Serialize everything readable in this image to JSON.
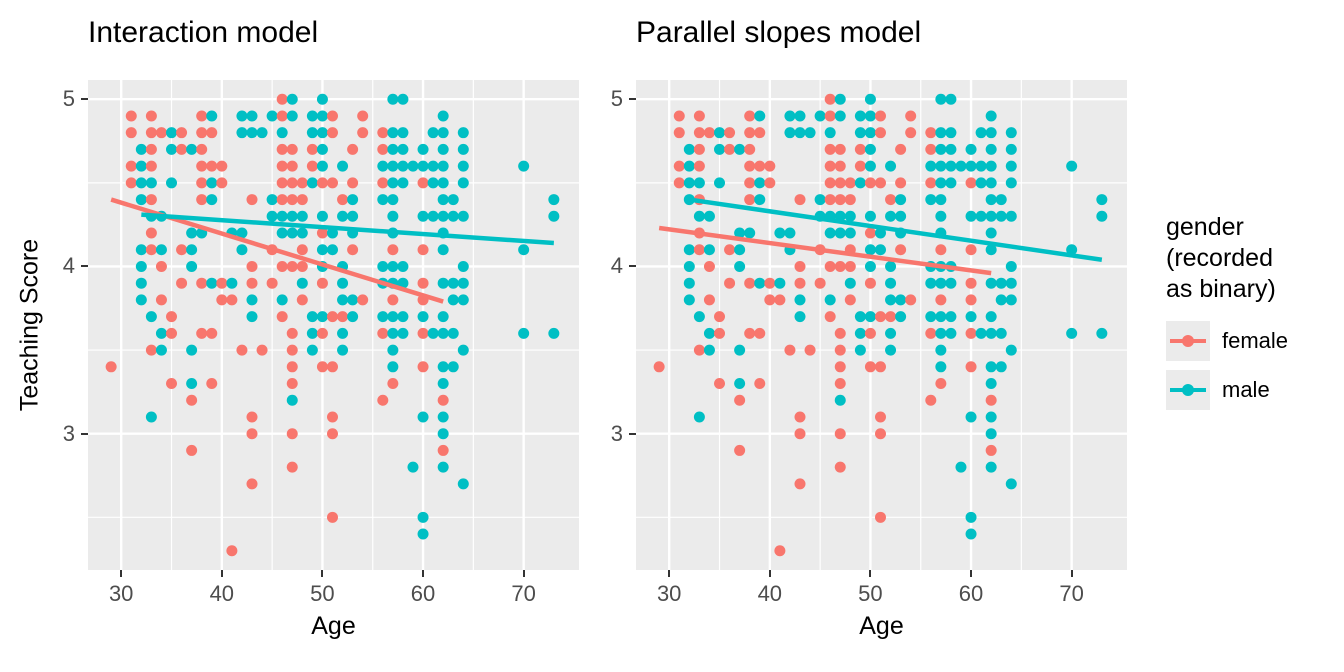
{
  "legend": {
    "title_lines": [
      "gender",
      "(recorded",
      "as binary)"
    ],
    "entries": [
      {
        "label": "female",
        "color": "#F8766D"
      },
      {
        "label": "male",
        "color": "#00BFC4"
      }
    ]
  },
  "chart_data": {
    "type": "scatter",
    "xlabel": "Age",
    "ylabel": "Teaching Score",
    "xlim": [
      26.7,
      75.5
    ],
    "ylim": [
      2.185,
      5.115
    ],
    "x_major_ticks": [
      30,
      40,
      50,
      60,
      70
    ],
    "x_minor_ticks": [
      35,
      45,
      55,
      65
    ],
    "y_major_ticks": [
      3,
      4,
      5
    ],
    "y_minor_ticks": [
      2.5,
      3.5,
      4.5
    ],
    "grid": "white major and minor gridlines on gray panel",
    "legend_position": "right",
    "series": {
      "f": "female",
      "m": "male"
    },
    "series_colors": {
      "f": "#F8766D",
      "m": "#00BFC4"
    },
    "facets": [
      {
        "title": "Interaction model",
        "trend_lines": [
          {
            "series": "f",
            "x": [
              29,
              62
            ],
            "y": [
              4.4,
              3.79
            ]
          },
          {
            "series": "m",
            "x": [
              32,
              73
            ],
            "y": [
              4.31,
              4.14
            ]
          }
        ]
      },
      {
        "title": "Parallel slopes model",
        "trend_lines": [
          {
            "series": "f",
            "x": [
              29,
              62
            ],
            "y": [
              4.23,
              3.96
            ]
          },
          {
            "series": "m",
            "x": [
              32,
              73
            ],
            "y": [
              4.4,
              4.04
            ]
          }
        ]
      }
    ],
    "points_note": "shared across both facets; [age, score, gender]",
    "points": [
      [
        46,
        5.0,
        "f"
      ],
      [
        47,
        5.0,
        "m"
      ],
      [
        50,
        5.0,
        "m"
      ],
      [
        57,
        5.0,
        "m"
      ],
      [
        58,
        5.0,
        "m"
      ],
      [
        31,
        4.9,
        "f"
      ],
      [
        33,
        4.9,
        "f"
      ],
      [
        38,
        4.9,
        "f"
      ],
      [
        39,
        4.9,
        "m"
      ],
      [
        42,
        4.9,
        "m"
      ],
      [
        43,
        4.9,
        "m"
      ],
      [
        45,
        4.9,
        "m"
      ],
      [
        46,
        4.9,
        "f"
      ],
      [
        47,
        4.9,
        "m"
      ],
      [
        49,
        4.9,
        "m"
      ],
      [
        50,
        4.9,
        "m"
      ],
      [
        51,
        4.9,
        "f"
      ],
      [
        54,
        4.9,
        "f"
      ],
      [
        62,
        4.9,
        "m"
      ],
      [
        31,
        4.8,
        "f"
      ],
      [
        33,
        4.8,
        "f"
      ],
      [
        34,
        4.8,
        "f"
      ],
      [
        35,
        4.8,
        "m"
      ],
      [
        36,
        4.8,
        "f"
      ],
      [
        38,
        4.8,
        "f"
      ],
      [
        39,
        4.8,
        "f"
      ],
      [
        42,
        4.8,
        "m"
      ],
      [
        43,
        4.8,
        "m"
      ],
      [
        44,
        4.8,
        "m"
      ],
      [
        46,
        4.8,
        "m"
      ],
      [
        49,
        4.8,
        "m"
      ],
      [
        50,
        4.8,
        "m"
      ],
      [
        51,
        4.8,
        "f"
      ],
      [
        54,
        4.8,
        "f"
      ],
      [
        56,
        4.8,
        "f"
      ],
      [
        57,
        4.8,
        "m"
      ],
      [
        58,
        4.8,
        "m"
      ],
      [
        61,
        4.8,
        "m"
      ],
      [
        62,
        4.8,
        "m"
      ],
      [
        64,
        4.8,
        "m"
      ],
      [
        32,
        4.7,
        "m"
      ],
      [
        33,
        4.7,
        "f"
      ],
      [
        35,
        4.7,
        "m"
      ],
      [
        36,
        4.7,
        "f"
      ],
      [
        37,
        4.7,
        "m"
      ],
      [
        38,
        4.7,
        "f"
      ],
      [
        46,
        4.7,
        "f"
      ],
      [
        47,
        4.7,
        "f"
      ],
      [
        49,
        4.7,
        "f"
      ],
      [
        50,
        4.7,
        "m"
      ],
      [
        53,
        4.7,
        "f"
      ],
      [
        56,
        4.7,
        "f"
      ],
      [
        57,
        4.7,
        "m"
      ],
      [
        58,
        4.7,
        "m"
      ],
      [
        60,
        4.7,
        "m"
      ],
      [
        62,
        4.7,
        "m"
      ],
      [
        64,
        4.7,
        "m"
      ],
      [
        31,
        4.6,
        "f"
      ],
      [
        32,
        4.6,
        "m"
      ],
      [
        33,
        4.6,
        "f"
      ],
      [
        38,
        4.6,
        "f"
      ],
      [
        39,
        4.6,
        "f"
      ],
      [
        40,
        4.6,
        "f"
      ],
      [
        46,
        4.6,
        "f"
      ],
      [
        47,
        4.6,
        "f"
      ],
      [
        49,
        4.6,
        "f"
      ],
      [
        50,
        4.6,
        "m"
      ],
      [
        52,
        4.6,
        "m"
      ],
      [
        56,
        4.6,
        "m"
      ],
      [
        57,
        4.6,
        "m"
      ],
      [
        58,
        4.6,
        "m"
      ],
      [
        59,
        4.6,
        "m"
      ],
      [
        60,
        4.6,
        "m"
      ],
      [
        61,
        4.6,
        "m"
      ],
      [
        62,
        4.6,
        "m"
      ],
      [
        64,
        4.6,
        "m"
      ],
      [
        70,
        4.6,
        "m"
      ],
      [
        31,
        4.5,
        "f"
      ],
      [
        32,
        4.5,
        "m"
      ],
      [
        33,
        4.5,
        "m"
      ],
      [
        35,
        4.5,
        "m"
      ],
      [
        38,
        4.5,
        "f"
      ],
      [
        39,
        4.5,
        "m"
      ],
      [
        40,
        4.5,
        "f"
      ],
      [
        46,
        4.5,
        "f"
      ],
      [
        47,
        4.5,
        "f"
      ],
      [
        48,
        4.5,
        "f"
      ],
      [
        49,
        4.5,
        "m"
      ],
      [
        50,
        4.5,
        "f"
      ],
      [
        51,
        4.5,
        "f"
      ],
      [
        53,
        4.5,
        "f"
      ],
      [
        56,
        4.5,
        "f"
      ],
      [
        57,
        4.5,
        "m"
      ],
      [
        58,
        4.5,
        "m"
      ],
      [
        60,
        4.5,
        "f"
      ],
      [
        61,
        4.5,
        "m"
      ],
      [
        62,
        4.5,
        "m"
      ],
      [
        64,
        4.5,
        "m"
      ],
      [
        32,
        4.4,
        "m"
      ],
      [
        33,
        4.4,
        "f"
      ],
      [
        38,
        4.4,
        "f"
      ],
      [
        39,
        4.4,
        "m"
      ],
      [
        43,
        4.4,
        "f"
      ],
      [
        45,
        4.4,
        "m"
      ],
      [
        46,
        4.4,
        "f"
      ],
      [
        47,
        4.4,
        "f"
      ],
      [
        48,
        4.4,
        "f"
      ],
      [
        52,
        4.4,
        "f"
      ],
      [
        53,
        4.4,
        "m"
      ],
      [
        56,
        4.4,
        "m"
      ],
      [
        57,
        4.4,
        "m"
      ],
      [
        62,
        4.4,
        "m"
      ],
      [
        63,
        4.4,
        "m"
      ],
      [
        73,
        4.4,
        "m"
      ],
      [
        33,
        4.3,
        "m"
      ],
      [
        34,
        4.3,
        "m"
      ],
      [
        45,
        4.3,
        "m"
      ],
      [
        46,
        4.3,
        "m"
      ],
      [
        47,
        4.3,
        "m"
      ],
      [
        48,
        4.3,
        "m"
      ],
      [
        50,
        4.3,
        "m"
      ],
      [
        52,
        4.3,
        "m"
      ],
      [
        53,
        4.3,
        "m"
      ],
      [
        57,
        4.3,
        "m"
      ],
      [
        60,
        4.3,
        "m"
      ],
      [
        61,
        4.3,
        "m"
      ],
      [
        62,
        4.3,
        "m"
      ],
      [
        63,
        4.3,
        "m"
      ],
      [
        64,
        4.3,
        "m"
      ],
      [
        73,
        4.3,
        "m"
      ],
      [
        33,
        4.2,
        "f"
      ],
      [
        37,
        4.2,
        "m"
      ],
      [
        38,
        4.2,
        "m"
      ],
      [
        41,
        4.2,
        "m"
      ],
      [
        42,
        4.2,
        "m"
      ],
      [
        46,
        4.2,
        "m"
      ],
      [
        47,
        4.2,
        "m"
      ],
      [
        48,
        4.2,
        "m"
      ],
      [
        50,
        4.2,
        "f"
      ],
      [
        51,
        4.2,
        "m"
      ],
      [
        53,
        4.2,
        "m"
      ],
      [
        57,
        4.2,
        "m"
      ],
      [
        62,
        4.2,
        "m"
      ],
      [
        32,
        4.1,
        "m"
      ],
      [
        33,
        4.1,
        "f"
      ],
      [
        34,
        4.1,
        "m"
      ],
      [
        36,
        4.1,
        "f"
      ],
      [
        37,
        4.1,
        "m"
      ],
      [
        42,
        4.1,
        "m"
      ],
      [
        45,
        4.1,
        "f"
      ],
      [
        48,
        4.1,
        "f"
      ],
      [
        50,
        4.1,
        "m"
      ],
      [
        51,
        4.1,
        "m"
      ],
      [
        53,
        4.1,
        "f"
      ],
      [
        57,
        4.1,
        "f"
      ],
      [
        60,
        4.1,
        "f"
      ],
      [
        62,
        4.1,
        "m"
      ],
      [
        70,
        4.1,
        "m"
      ],
      [
        32,
        4.0,
        "m"
      ],
      [
        34,
        4.0,
        "f"
      ],
      [
        37,
        4.0,
        "m"
      ],
      [
        43,
        4.0,
        "f"
      ],
      [
        46,
        4.0,
        "f"
      ],
      [
        47,
        4.0,
        "f"
      ],
      [
        48,
        4.0,
        "f"
      ],
      [
        50,
        4.0,
        "m"
      ],
      [
        52,
        4.0,
        "m"
      ],
      [
        56,
        4.0,
        "m"
      ],
      [
        57,
        4.0,
        "m"
      ],
      [
        58,
        4.0,
        "m"
      ],
      [
        64,
        4.0,
        "m"
      ],
      [
        32,
        3.9,
        "m"
      ],
      [
        36,
        3.9,
        "f"
      ],
      [
        38,
        3.9,
        "f"
      ],
      [
        39,
        3.9,
        "m"
      ],
      [
        40,
        3.9,
        "f"
      ],
      [
        41,
        3.9,
        "m"
      ],
      [
        43,
        3.9,
        "f"
      ],
      [
        45,
        3.9,
        "f"
      ],
      [
        48,
        3.9,
        "m"
      ],
      [
        50,
        3.9,
        "f"
      ],
      [
        52,
        3.9,
        "m"
      ],
      [
        56,
        3.9,
        "m"
      ],
      [
        57,
        3.9,
        "m"
      ],
      [
        58,
        3.9,
        "m"
      ],
      [
        60,
        3.9,
        "f"
      ],
      [
        62,
        3.9,
        "m"
      ],
      [
        63,
        3.9,
        "m"
      ],
      [
        64,
        3.9,
        "m"
      ],
      [
        32,
        3.8,
        "m"
      ],
      [
        34,
        3.8,
        "f"
      ],
      [
        40,
        3.8,
        "f"
      ],
      [
        41,
        3.8,
        "f"
      ],
      [
        43,
        3.8,
        "m"
      ],
      [
        46,
        3.8,
        "m"
      ],
      [
        48,
        3.8,
        "f"
      ],
      [
        52,
        3.8,
        "m"
      ],
      [
        53,
        3.8,
        "m"
      ],
      [
        54,
        3.8,
        "f"
      ],
      [
        57,
        3.8,
        "f"
      ],
      [
        60,
        3.8,
        "f"
      ],
      [
        63,
        3.8,
        "m"
      ],
      [
        64,
        3.8,
        "m"
      ],
      [
        33,
        3.7,
        "m"
      ],
      [
        35,
        3.7,
        "f"
      ],
      [
        43,
        3.7,
        "m"
      ],
      [
        46,
        3.7,
        "f"
      ],
      [
        49,
        3.7,
        "m"
      ],
      [
        50,
        3.7,
        "m"
      ],
      [
        51,
        3.7,
        "f"
      ],
      [
        52,
        3.7,
        "f"
      ],
      [
        53,
        3.7,
        "m"
      ],
      [
        56,
        3.7,
        "m"
      ],
      [
        57,
        3.7,
        "m"
      ],
      [
        58,
        3.7,
        "m"
      ],
      [
        60,
        3.7,
        "m"
      ],
      [
        62,
        3.7,
        "m"
      ],
      [
        34,
        3.6,
        "m"
      ],
      [
        35,
        3.6,
        "f"
      ],
      [
        38,
        3.6,
        "f"
      ],
      [
        39,
        3.6,
        "f"
      ],
      [
        47,
        3.6,
        "f"
      ],
      [
        49,
        3.6,
        "m"
      ],
      [
        50,
        3.6,
        "f"
      ],
      [
        52,
        3.6,
        "m"
      ],
      [
        56,
        3.6,
        "f"
      ],
      [
        57,
        3.6,
        "m"
      ],
      [
        58,
        3.6,
        "m"
      ],
      [
        60,
        3.6,
        "f"
      ],
      [
        61,
        3.6,
        "m"
      ],
      [
        62,
        3.6,
        "m"
      ],
      [
        63,
        3.6,
        "m"
      ],
      [
        70,
        3.6,
        "m"
      ],
      [
        73,
        3.6,
        "m"
      ],
      [
        33,
        3.5,
        "f"
      ],
      [
        34,
        3.5,
        "m"
      ],
      [
        37,
        3.5,
        "m"
      ],
      [
        42,
        3.5,
        "f"
      ],
      [
        44,
        3.5,
        "f"
      ],
      [
        47,
        3.5,
        "f"
      ],
      [
        49,
        3.5,
        "m"
      ],
      [
        52,
        3.5,
        "m"
      ],
      [
        57,
        3.5,
        "m"
      ],
      [
        64,
        3.5,
        "m"
      ],
      [
        29,
        3.4,
        "f"
      ],
      [
        47,
        3.4,
        "f"
      ],
      [
        50,
        3.4,
        "f"
      ],
      [
        51,
        3.4,
        "f"
      ],
      [
        57,
        3.4,
        "m"
      ],
      [
        60,
        3.4,
        "f"
      ],
      [
        62,
        3.4,
        "m"
      ],
      [
        63,
        3.4,
        "m"
      ],
      [
        35,
        3.3,
        "f"
      ],
      [
        37,
        3.3,
        "m"
      ],
      [
        39,
        3.3,
        "f"
      ],
      [
        47,
        3.3,
        "f"
      ],
      [
        57,
        3.3,
        "f"
      ],
      [
        62,
        3.3,
        "m"
      ],
      [
        37,
        3.2,
        "f"
      ],
      [
        47,
        3.2,
        "m"
      ],
      [
        56,
        3.2,
        "f"
      ],
      [
        62,
        3.2,
        "f"
      ],
      [
        33,
        3.1,
        "m"
      ],
      [
        43,
        3.1,
        "f"
      ],
      [
        51,
        3.1,
        "f"
      ],
      [
        60,
        3.1,
        "m"
      ],
      [
        62,
        3.1,
        "m"
      ],
      [
        43,
        3.0,
        "f"
      ],
      [
        47,
        3.0,
        "f"
      ],
      [
        51,
        3.0,
        "f"
      ],
      [
        62,
        3.0,
        "m"
      ],
      [
        37,
        2.9,
        "f"
      ],
      [
        62,
        2.9,
        "f"
      ],
      [
        47,
        2.8,
        "f"
      ],
      [
        59,
        2.8,
        "m"
      ],
      [
        62,
        2.8,
        "m"
      ],
      [
        43,
        2.7,
        "f"
      ],
      [
        64,
        2.7,
        "m"
      ],
      [
        51,
        2.5,
        "f"
      ],
      [
        60,
        2.5,
        "m"
      ],
      [
        60,
        2.4,
        "m"
      ],
      [
        41,
        2.3,
        "f"
      ]
    ]
  }
}
